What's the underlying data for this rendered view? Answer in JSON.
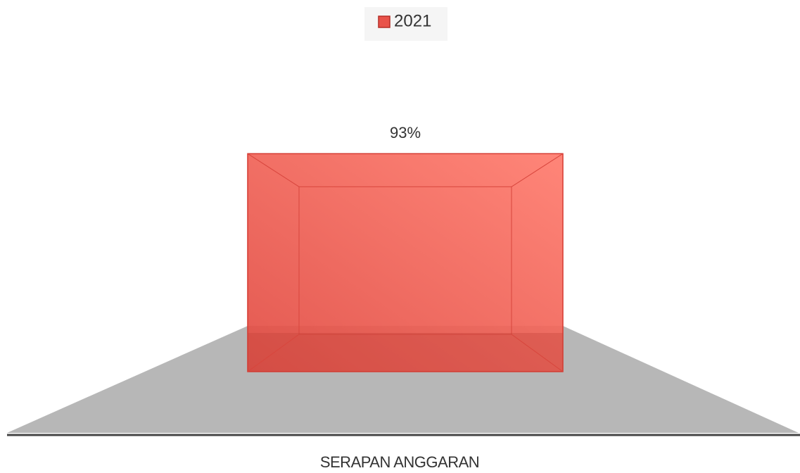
{
  "chart_data": {
    "type": "bar3d",
    "categories": [
      "SERAPAN ANGGARAN"
    ],
    "series": [
      {
        "name": "2021",
        "color": "#e9534a",
        "values": [
          93
        ],
        "value_labels": [
          "93%"
        ]
      }
    ],
    "ylim": [
      0,
      100
    ],
    "legend": "top"
  }
}
